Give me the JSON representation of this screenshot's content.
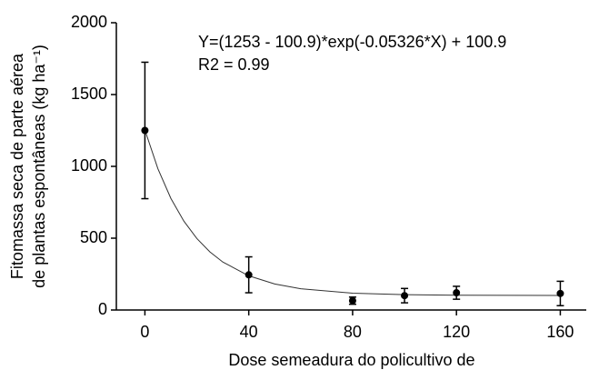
{
  "chart_data": {
    "type": "scatter",
    "equation": "Y=(1253 - 100.9)*exp(-0.05326*X) + 100.9",
    "r2": "R2 = 0.99",
    "ylabel": [
      "Fitomassa seca de parte aérea",
      "de plantas espontâneas  (kg ha⁻¹)"
    ],
    "xlabel": "Dose semeadura do policultivo de",
    "x": [
      0,
      40,
      80,
      100,
      120,
      160
    ],
    "values": [
      1250,
      245,
      65,
      100,
      120,
      115
    ],
    "errors": [
      475,
      125,
      25,
      50,
      45,
      85
    ],
    "color": "#000000",
    "fit": {
      "x": [
        0,
        5,
        10,
        15,
        20,
        25,
        30,
        40,
        50,
        60,
        80,
        100,
        120,
        160
      ],
      "values": [
        1253,
        984,
        777,
        619,
        498,
        405,
        334,
        238,
        181,
        148,
        117,
        107,
        103,
        101
      ]
    },
    "xlim": [
      -11,
      170
    ],
    "ylim": [
      0,
      2000
    ],
    "xticks": [
      0,
      40,
      80,
      120,
      160
    ],
    "yticks": [
      0,
      500,
      1000,
      1500,
      2000
    ]
  }
}
